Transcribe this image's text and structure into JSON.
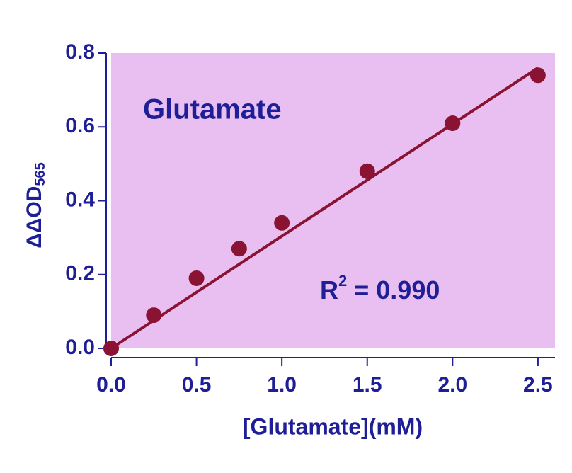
{
  "chart_data": {
    "type": "scatter",
    "annotation": "Glutamate",
    "r2": {
      "text": "R",
      "sup": "2",
      "rest": " = 0.990"
    },
    "xlabel": "[Glutamate](mM)",
    "ylabel": {
      "text": "ΔΔOD",
      "sub": "565"
    },
    "x": [
      0,
      0.25,
      0.5,
      0.75,
      1.0,
      1.5,
      2.0,
      2.5
    ],
    "y": [
      0.0,
      0.09,
      0.19,
      0.27,
      0.34,
      0.48,
      0.61,
      0.74
    ],
    "color": "#8a1232",
    "fit": {
      "x": [
        0,
        2.5
      ],
      "y": [
        0,
        0.76
      ],
      "color": "#8a1232"
    },
    "background": "#e8bff0",
    "xlim": [
      0,
      2.6
    ],
    "ylim": [
      0,
      0.8
    ],
    "xticks": [
      {
        "value": 0,
        "label": "0.0"
      },
      0.5,
      {
        "value": 1,
        "label": "1.0"
      },
      1.5,
      {
        "value": 2,
        "label": "2.0"
      },
      2.5
    ],
    "yticks": [
      {
        "value": 0,
        "label": "0.0"
      },
      0.2,
      0.4,
      0.6,
      0.8
    ]
  }
}
